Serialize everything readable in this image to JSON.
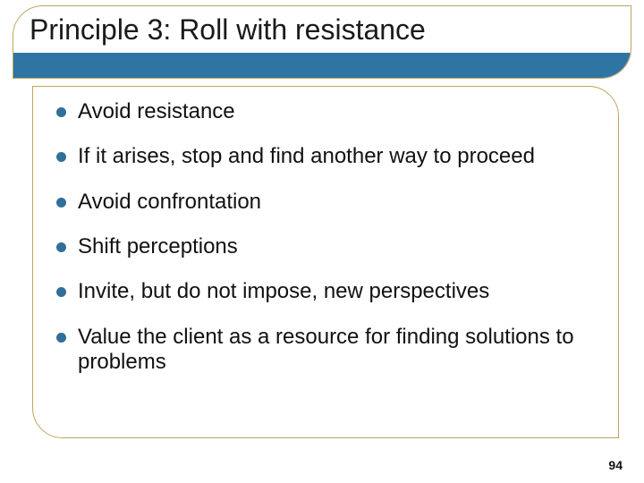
{
  "title": "Principle 3: Roll with resistance",
  "bullets": [
    "Avoid resistance",
    "If it arises, stop and find another way to proceed",
    "Avoid confrontation",
    "Shift perceptions",
    "Invite, but do not impose, new perspectives",
    "Value the client as a resource for finding solutions to problems"
  ],
  "page_number": "94",
  "colors": {
    "accent_bar": "#2e75a3",
    "box_border": "#bfa65a",
    "bullet_dot": "#2f6f9a",
    "text": "#111111",
    "background": "#ffffff"
  },
  "typography": {
    "title_fontsize": 32,
    "bullet_fontsize": 24,
    "page_number_fontsize": 14,
    "font_family": "Arial"
  },
  "layout": {
    "slide_width": 720,
    "slide_height": 540,
    "title_box_radius": 34,
    "body_box_radius": 34
  }
}
